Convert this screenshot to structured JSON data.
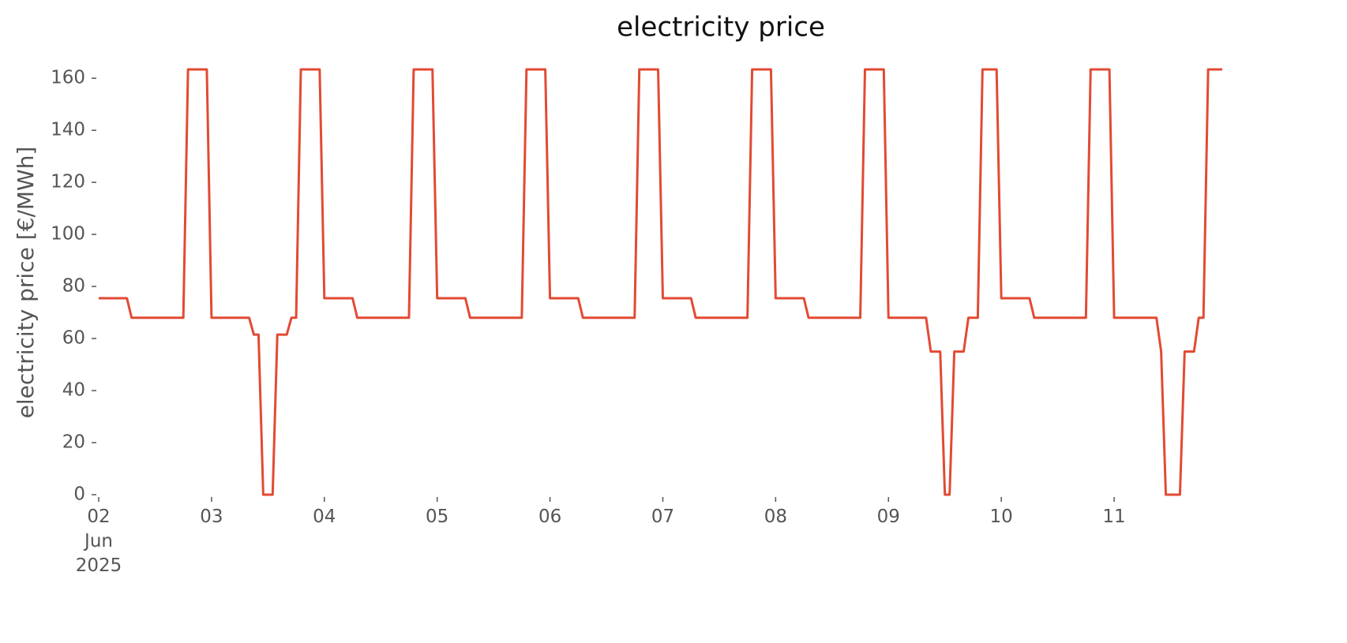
{
  "chart_data": {
    "type": "line",
    "title": "electricity price",
    "y_label": "electricity price [€/MWh]",
    "color": "#e24a33",
    "values": [
      75.5,
      75.5,
      75.5,
      75.5,
      75.5,
      75.5,
      75.5,
      68,
      68,
      68,
      68,
      68,
      68,
      68,
      68,
      68,
      68,
      68,
      68,
      163.4,
      163.4,
      163.4,
      163.4,
      163.4,
      68,
      68,
      68,
      68,
      68,
      68,
      68,
      68,
      68,
      61.5,
      61.5,
      0,
      0,
      0,
      61.5,
      61.5,
      61.5,
      68,
      68,
      163.4,
      163.4,
      163.4,
      163.4,
      163.4,
      75.5,
      75.5,
      75.5,
      75.5,
      75.5,
      75.5,
      75.5,
      68,
      68,
      68,
      68,
      68,
      68,
      68,
      68,
      68,
      68,
      68,
      68,
      163.4,
      163.4,
      163.4,
      163.4,
      163.4,
      75.5,
      75.5,
      75.5,
      75.5,
      75.5,
      75.5,
      75.5,
      68,
      68,
      68,
      68,
      68,
      68,
      68,
      68,
      68,
      68,
      68,
      68,
      163.4,
      163.4,
      163.4,
      163.4,
      163.4,
      75.5,
      75.5,
      75.5,
      75.5,
      75.5,
      75.5,
      75.5,
      68,
      68,
      68,
      68,
      68,
      68,
      68,
      68,
      68,
      68,
      68,
      68,
      163.4,
      163.4,
      163.4,
      163.4,
      163.4,
      75.5,
      75.5,
      75.5,
      75.5,
      75.5,
      75.5,
      75.5,
      68,
      68,
      68,
      68,
      68,
      68,
      68,
      68,
      68,
      68,
      68,
      68,
      163.4,
      163.4,
      163.4,
      163.4,
      163.4,
      75.5,
      75.5,
      75.5,
      75.5,
      75.5,
      75.5,
      75.5,
      68,
      68,
      68,
      68,
      68,
      68,
      68,
      68,
      68,
      68,
      68,
      68,
      163.4,
      163.4,
      163.4,
      163.4,
      163.4,
      68,
      68,
      68,
      68,
      68,
      68,
      68,
      68,
      68,
      55,
      55,
      55,
      0,
      0,
      55,
      55,
      55,
      68,
      68,
      68,
      163.4,
      163.4,
      163.4,
      163.4,
      75.5,
      75.5,
      75.5,
      75.5,
      75.5,
      75.5,
      75.5,
      68,
      68,
      68,
      68,
      68,
      68,
      68,
      68,
      68,
      68,
      68,
      68,
      163.4,
      163.4,
      163.4,
      163.4,
      163.4,
      68,
      68,
      68,
      68,
      68,
      68,
      68,
      68,
      68,
      68,
      55,
      0,
      0,
      0,
      0,
      55,
      55,
      55,
      68,
      68,
      163.4,
      163.4,
      163.4,
      163.4
    ],
    "xlim": [
      0,
      239
    ],
    "xticks": [
      {
        "value": 0,
        "label": "02\nJun\n2025"
      },
      {
        "value": 24,
        "label": "03"
      },
      {
        "value": 48,
        "label": "04"
      },
      {
        "value": 72,
        "label": "05"
      },
      {
        "value": 96,
        "label": "06"
      },
      {
        "value": 120,
        "label": "07"
      },
      {
        "value": 144,
        "label": "08"
      },
      {
        "value": 168,
        "label": "09"
      },
      {
        "value": 192,
        "label": "10"
      },
      {
        "value": 216,
        "label": "11"
      }
    ],
    "ylim": [
      0,
      163.4
    ],
    "yticks": [
      0,
      20,
      40,
      60,
      80,
      100,
      120,
      140,
      160
    ],
    "grid": false
  }
}
